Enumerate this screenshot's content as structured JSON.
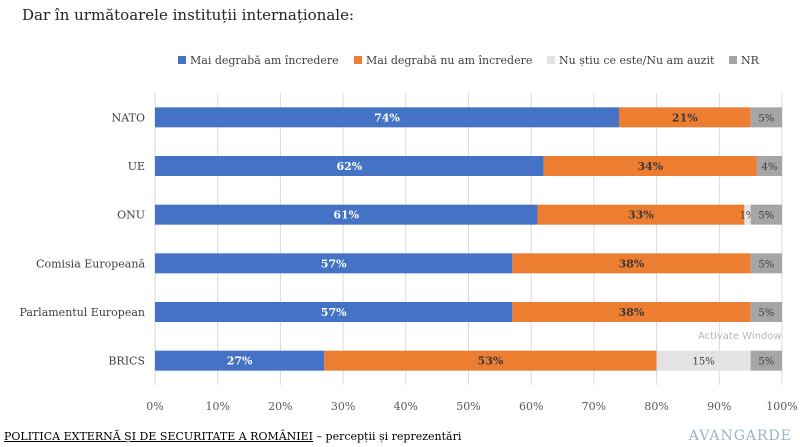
{
  "question": "Dar în următoarele instituții internaționale:",
  "chart_data": {
    "type": "bar",
    "orientation": "horizontal",
    "stacked": true,
    "categories": [
      "NATO",
      "UE",
      "ONU",
      "Comisia Europeană",
      "Parlamentul European",
      "BRICS"
    ],
    "series": [
      {
        "name": "Mai degrabă am încredere",
        "color": "#4472C4",
        "values": [
          74,
          62,
          61,
          57,
          57,
          27
        ],
        "labels": [
          "74%",
          "62%",
          "61%",
          "57%",
          "57%",
          "27%"
        ]
      },
      {
        "name": "Mai degrabă nu am încredere",
        "color": "#ED7D31",
        "values": [
          21,
          34,
          33,
          38,
          38,
          53
        ],
        "labels": [
          "21%",
          "34%",
          "33%",
          "38%",
          "38%",
          "53%"
        ]
      },
      {
        "name": "Nu știu ce este/Nu am auzit",
        "color": "#E3E3E3",
        "values": [
          0,
          0,
          1,
          0,
          0,
          15
        ],
        "labels": [
          "",
          "",
          "1%",
          "",
          "",
          "15%"
        ]
      },
      {
        "name": "NR",
        "color": "#A5A5A5",
        "values": [
          5,
          4,
          5,
          5,
          5,
          5
        ],
        "labels": [
          "5%",
          "4%",
          "5%",
          "5%",
          "5%",
          "5%"
        ]
      }
    ],
    "xlim": [
      0,
      100
    ],
    "x_ticks": [
      "0%",
      "10%",
      "20%",
      "30%",
      "40%",
      "50%",
      "60%",
      "70%",
      "80%",
      "90%",
      "100%"
    ],
    "legend_position": "top",
    "grid": true
  },
  "footer": {
    "title": "POLITICA EXTERNĂ ȘI DE SECURITATE A ROMÂNIEI",
    "subtitle": " – percepții și reprezentări"
  },
  "brand": "AVANGARDE",
  "watermark": "Activate Window"
}
